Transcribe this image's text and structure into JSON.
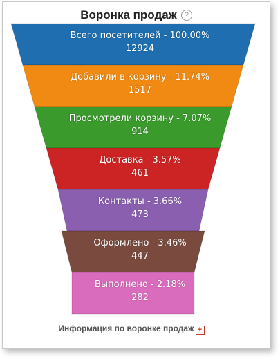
{
  "header": {
    "title": "Воронка продаж",
    "help_icon": "question-circle-icon"
  },
  "stages": [
    {
      "label": "Всего посетителей - 100.00%",
      "count": "12924",
      "color": "#1f6fb0"
    },
    {
      "label": "Добавили в корзину - 11.74%",
      "count": "1517",
      "color": "#f08a12"
    },
    {
      "label": "Просмотрели корзину - 7.07%",
      "count": "914",
      "color": "#3a9a2c"
    },
    {
      "label": "Доставка - 3.57%",
      "count": "461",
      "color": "#cc2424"
    },
    {
      "label": "Контакты - 3.66%",
      "count": "473",
      "color": "#8a5fb0"
    },
    {
      "label": "Оформлено - 3.46%",
      "count": "447",
      "color": "#7a4a3e"
    },
    {
      "label": "Выполнено - 2.18%",
      "count": "282",
      "color": "#d96cbd"
    }
  ],
  "footer": {
    "text": "Информация по воронке продаж",
    "plus_icon": "expand-plus-icon"
  }
}
